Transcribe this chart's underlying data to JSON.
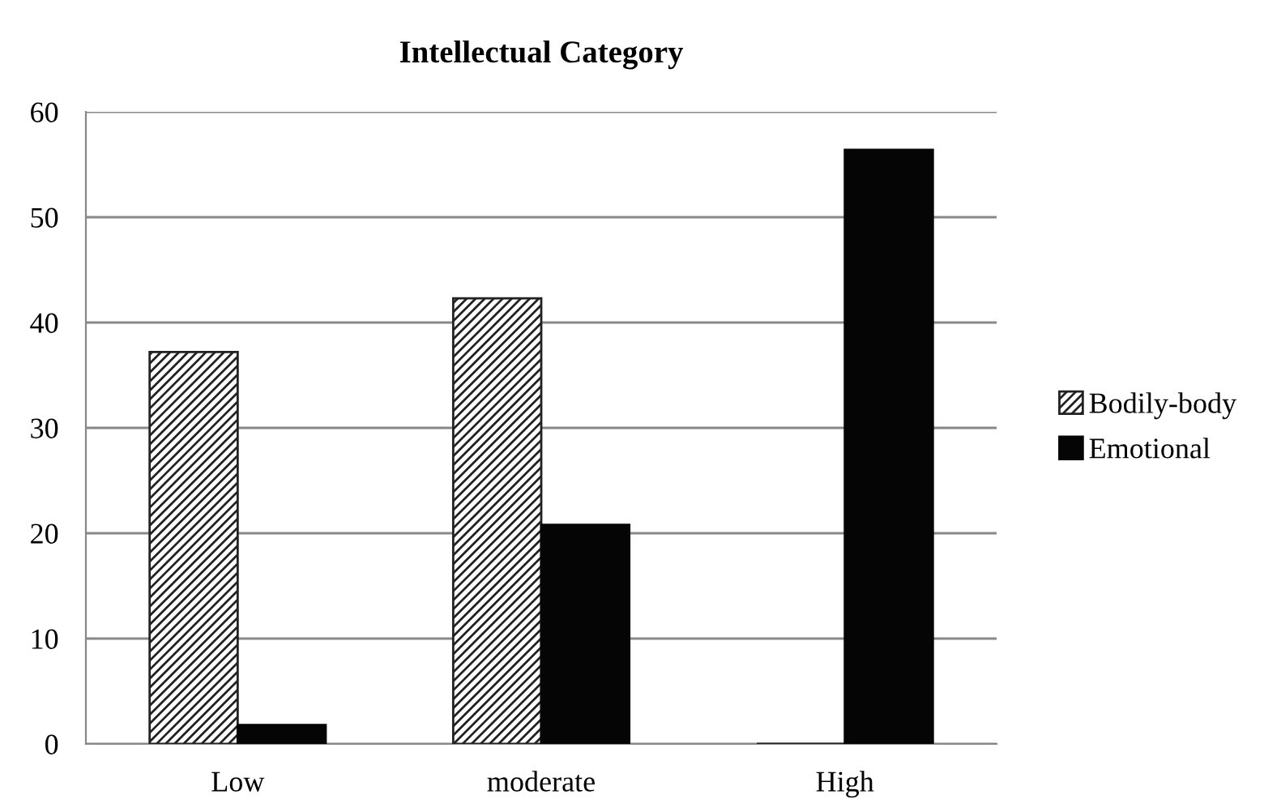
{
  "chart_data": {
    "type": "bar",
    "title": "Intellectual Category",
    "categories": [
      "Low",
      "moderate",
      "High"
    ],
    "series": [
      {
        "name": "Bodily-body",
        "color": "#222222",
        "values": [
          37.2,
          42.3,
          0
        ]
      },
      {
        "name": "Emotional",
        "color": "#050505",
        "values": [
          1.8,
          20.8,
          56.4
        ]
      }
    ],
    "ylim": [
      0,
      60
    ],
    "yticks": [
      0,
      10,
      20,
      30,
      40,
      50,
      60
    ],
    "grid": "y",
    "legend": "right"
  }
}
